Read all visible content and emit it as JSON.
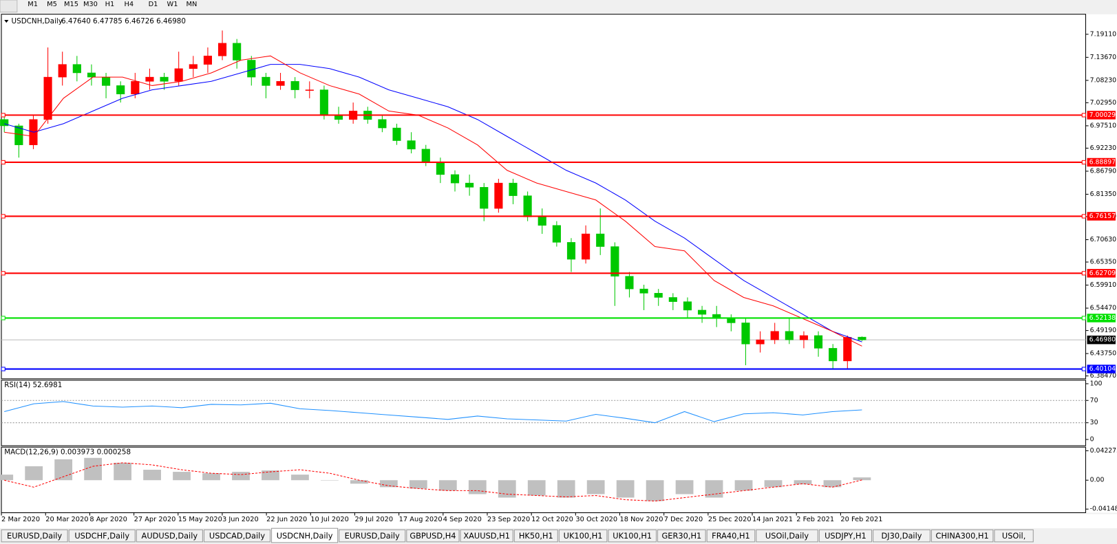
{
  "toolbar": {
    "timeframes": [
      "M1",
      "M5",
      "M15",
      "M30",
      "H1",
      "H4",
      "D1",
      "W1",
      "MN"
    ]
  },
  "chart": {
    "symbol": "USDCNH,Daily",
    "ohlc_text": "6.47640 6.47785 6.46726 6.46980",
    "up_color": "#ff0000",
    "down_color": "#00c800",
    "ylim": [
      6.3796,
      7.2367
    ],
    "yticks": [
      {
        "value": 7.1911,
        "label": "7.19110"
      },
      {
        "value": 7.1367,
        "label": "7.13670"
      },
      {
        "value": 7.0823,
        "label": "7.08230"
      },
      {
        "value": 7.0295,
        "label": "7.02950"
      },
      {
        "value": 6.9751,
        "label": "6.97510"
      },
      {
        "value": 6.9223,
        "label": "6.92230"
      },
      {
        "value": 6.8679,
        "label": "6.86790"
      },
      {
        "value": 6.8135,
        "label": "6.81350"
      },
      {
        "value": 6.7607,
        "label": "6.76070"
      },
      {
        "value": 6.7063,
        "label": "6.70630"
      },
      {
        "value": 6.6535,
        "label": "6.65350"
      },
      {
        "value": 6.5991,
        "label": "6.59910"
      },
      {
        "value": 6.5447,
        "label": "6.54470"
      },
      {
        "value": 6.4919,
        "label": "6.49190"
      },
      {
        "value": 6.4375,
        "label": "6.43750"
      },
      {
        "value": 6.3847,
        "label": "6.38470"
      }
    ],
    "levels": [
      {
        "price": 7.00029,
        "color": "#ff0000"
      },
      {
        "price": 6.88897,
        "color": "#ff0000"
      },
      {
        "price": 6.76157,
        "color": "#ff0000"
      },
      {
        "price": 6.62709,
        "color": "#ff0000"
      },
      {
        "price": 6.52138,
        "color": "#00e000"
      },
      {
        "price": 6.40104,
        "color": "#0000ff"
      }
    ],
    "current": {
      "value": 6.4698,
      "label": "6.46980"
    },
    "dates": [
      "2 Mar 2020",
      "20 Mar 2020",
      "8 Apr 2020",
      "27 Apr 2020",
      "15 May 2020",
      "3 Jun 2020",
      "22 Jun 2020",
      "10 Jul 2020",
      "29 Jul 2020",
      "17 Aug 2020",
      "4 Sep 2020",
      "23 Sep 2020",
      "12 Oct 2020",
      "30 Oct 2020",
      "18 Nov 2020",
      "7 Dec 2020",
      "25 Dec 2020",
      "14 Jan 2021",
      "2 Feb 2021",
      "20 Feb 2021"
    ],
    "candles": [
      [
        6.99,
        7.0,
        6.96,
        6.975
      ],
      [
        6.975,
        6.98,
        6.9,
        6.93
      ],
      [
        6.93,
        7.0,
        6.92,
        6.99
      ],
      [
        6.99,
        7.16,
        6.98,
        7.09
      ],
      [
        7.09,
        7.15,
        7.07,
        7.12
      ],
      [
        7.12,
        7.14,
        7.08,
        7.1
      ],
      [
        7.1,
        7.12,
        7.07,
        7.09
      ],
      [
        7.09,
        7.1,
        7.04,
        7.07
      ],
      [
        7.07,
        7.08,
        7.03,
        7.05
      ],
      [
        7.05,
        7.1,
        7.04,
        7.08
      ],
      [
        7.08,
        7.11,
        7.06,
        7.09
      ],
      [
        7.09,
        7.1,
        7.06,
        7.08
      ],
      [
        7.08,
        7.15,
        7.07,
        7.11
      ],
      [
        7.11,
        7.14,
        7.09,
        7.12
      ],
      [
        7.12,
        7.16,
        7.1,
        7.14
      ],
      [
        7.14,
        7.2,
        7.13,
        7.17
      ],
      [
        7.17,
        7.18,
        7.11,
        7.13
      ],
      [
        7.13,
        7.14,
        7.07,
        7.09
      ],
      [
        7.09,
        7.1,
        7.04,
        7.07
      ],
      [
        7.07,
        7.1,
        7.06,
        7.08
      ],
      [
        7.08,
        7.09,
        7.04,
        7.06
      ],
      [
        7.06,
        7.08,
        7.04,
        7.06
      ],
      [
        7.06,
        7.07,
        6.99,
        7.0
      ],
      [
        7.0,
        7.02,
        6.98,
        6.99
      ],
      [
        6.99,
        7.03,
        6.98,
        7.01
      ],
      [
        7.01,
        7.02,
        6.98,
        6.99
      ],
      [
        6.99,
        7.0,
        6.96,
        6.97
      ],
      [
        6.97,
        6.98,
        6.93,
        6.94
      ],
      [
        6.94,
        6.96,
        6.91,
        6.92
      ],
      [
        6.92,
        6.93,
        6.88,
        6.89
      ],
      [
        6.89,
        6.9,
        6.84,
        6.86
      ],
      [
        6.86,
        6.87,
        6.82,
        6.84
      ],
      [
        6.84,
        6.86,
        6.81,
        6.83
      ],
      [
        6.83,
        6.84,
        6.75,
        6.78
      ],
      [
        6.78,
        6.85,
        6.77,
        6.84
      ],
      [
        6.84,
        6.85,
        6.79,
        6.81
      ],
      [
        6.81,
        6.82,
        6.75,
        6.76
      ],
      [
        6.76,
        6.78,
        6.72,
        6.74
      ],
      [
        6.74,
        6.75,
        6.69,
        6.7
      ],
      [
        6.7,
        6.71,
        6.63,
        6.66
      ],
      [
        6.66,
        6.74,
        6.65,
        6.72
      ],
      [
        6.72,
        6.78,
        6.67,
        6.69
      ],
      [
        6.69,
        6.7,
        6.55,
        6.62
      ],
      [
        6.62,
        6.63,
        6.57,
        6.59
      ],
      [
        6.59,
        6.6,
        6.54,
        6.58
      ],
      [
        6.58,
        6.59,
        6.55,
        6.57
      ],
      [
        6.57,
        6.58,
        6.54,
        6.56
      ],
      [
        6.56,
        6.57,
        6.52,
        6.54
      ],
      [
        6.54,
        6.55,
        6.51,
        6.53
      ],
      [
        6.53,
        6.55,
        6.5,
        6.52
      ],
      [
        6.52,
        6.53,
        6.49,
        6.51
      ],
      [
        6.51,
        6.52,
        6.41,
        6.46
      ],
      [
        6.46,
        6.49,
        6.44,
        6.47
      ],
      [
        6.47,
        6.51,
        6.46,
        6.49
      ],
      [
        6.49,
        6.52,
        6.46,
        6.47
      ],
      [
        6.47,
        6.49,
        6.45,
        6.48
      ],
      [
        6.48,
        6.49,
        6.43,
        6.45
      ],
      [
        6.45,
        6.46,
        6.4,
        6.42
      ],
      [
        6.42,
        6.48,
        6.4,
        6.476
      ],
      [
        6.4764,
        6.47785,
        6.46726,
        6.4698
      ]
    ],
    "ma_fast": {
      "color": "#ff0000",
      "values": [
        6.96,
        6.95,
        7.04,
        7.09,
        7.09,
        7.07,
        7.08,
        7.1,
        7.13,
        7.14,
        7.1,
        7.07,
        7.05,
        7.01,
        7.0,
        6.97,
        6.93,
        6.87,
        6.84,
        6.82,
        6.8,
        6.75,
        6.69,
        6.68,
        6.61,
        6.57,
        6.55,
        6.52,
        6.49,
        6.455
      ]
    },
    "ma_slow": {
      "color": "#0000ff",
      "values": [
        6.98,
        6.96,
        6.98,
        7.01,
        7.04,
        7.06,
        7.07,
        7.08,
        7.1,
        7.12,
        7.12,
        7.11,
        7.09,
        7.06,
        7.04,
        7.02,
        6.99,
        6.95,
        6.91,
        6.87,
        6.84,
        6.8,
        6.75,
        6.71,
        6.66,
        6.61,
        6.57,
        6.53,
        6.49,
        6.465
      ]
    }
  },
  "rsi": {
    "title": "RSI(14) 52.6981",
    "color": "#1e90ff",
    "ylim": [
      -10,
      105
    ],
    "yticks": [
      100,
      70,
      30,
      0
    ],
    "levels": [
      70,
      30
    ],
    "values": [
      50,
      64,
      68,
      60,
      58,
      60,
      57,
      63,
      62,
      65,
      55,
      52,
      48,
      44,
      40,
      36,
      42,
      37,
      35,
      33,
      45,
      38,
      30,
      50,
      32,
      46,
      48,
      44,
      50,
      53
    ]
  },
  "macd": {
    "title": "MACD(12,26,9) 0.003973 0.000258",
    "ylim": [
      -0.0456,
      0.0464
    ],
    "yticks": [
      {
        "value": 0.042275,
        "label": "0.042275"
      },
      {
        "value": 0,
        "label": "0.00"
      },
      {
        "value": -0.04148,
        "label": "-0.04148"
      }
    ],
    "histogram": {
      "color": "#c0c0c0",
      "values": [
        0.008,
        0.02,
        0.03,
        0.032,
        0.025,
        0.015,
        0.012,
        0.01,
        0.012,
        0.014,
        0.008,
        0.0,
        -0.005,
        -0.01,
        -0.012,
        -0.015,
        -0.02,
        -0.025,
        -0.022,
        -0.025,
        -0.02,
        -0.025,
        -0.03,
        -0.02,
        -0.025,
        -0.015,
        -0.01,
        -0.006,
        -0.01,
        0.004
      ]
    },
    "signal": {
      "color": "#ff0000",
      "values": [
        0.0,
        -0.01,
        0.005,
        0.02,
        0.025,
        0.022,
        0.015,
        0.01,
        0.008,
        0.012,
        0.015,
        0.01,
        0.0,
        -0.008,
        -0.012,
        -0.015,
        -0.015,
        -0.02,
        -0.022,
        -0.024,
        -0.022,
        -0.028,
        -0.03,
        -0.025,
        -0.02,
        -0.015,
        -0.01,
        -0.005,
        -0.01,
        0.0003
      ]
    }
  },
  "tabs": {
    "active": 4,
    "items": [
      "EURUSD,Daily",
      "USDCHF,Daily",
      "AUDUSD,Daily",
      "USDCAD,Daily",
      "USDCNH,Daily",
      "EURUSD,Daily",
      "GBPUSD,H4",
      "XAUUSD,H1",
      "HK50,H1",
      "UK100,H1",
      "UK100,H1",
      "GER30,H1",
      "FRA40,H1",
      "USOil,Daily",
      "USDJPY,H1",
      "DJ30,Daily",
      "CHINA300,H1",
      "USOil,"
    ]
  }
}
